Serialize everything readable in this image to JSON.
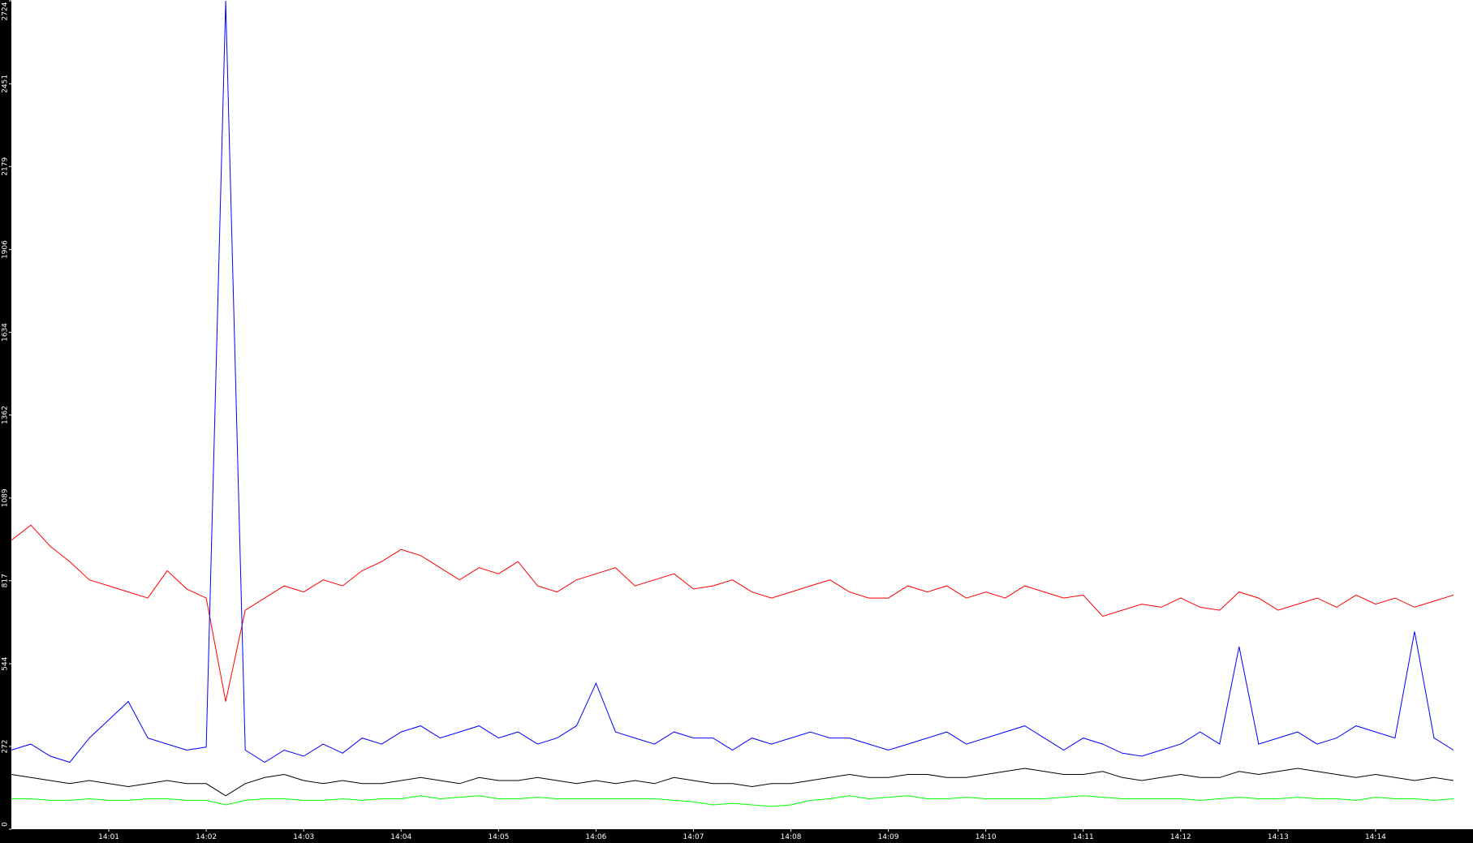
{
  "chart_data": {
    "type": "line",
    "x": [
      0,
      0.2,
      0.4,
      0.6,
      0.8,
      1,
      1.2,
      1.4,
      1.6,
      1.8,
      2,
      2.2,
      2.4,
      2.6,
      2.8,
      3,
      3.2,
      3.4,
      3.6,
      3.8,
      4,
      4.2,
      4.4,
      4.6,
      4.8,
      5,
      5.2,
      5.4,
      5.6,
      5.8,
      6,
      6.2,
      6.4,
      6.6,
      6.8,
      7,
      7.2,
      7.4,
      7.6,
      7.8,
      8,
      8.2,
      8.4,
      8.6,
      8.8,
      9,
      9.2,
      9.4,
      9.6,
      9.8,
      10,
      10.2,
      10.4,
      10.6,
      10.8,
      11,
      11.2,
      11.4,
      11.6,
      11.8,
      12,
      12.2,
      12.4,
      12.6,
      12.8,
      13,
      13.2,
      13.4,
      13.6,
      13.8,
      14,
      14.2,
      14.4,
      14.6,
      14.8
    ],
    "series": [
      {
        "color": "#ff0000",
        "values": [
          950,
          1000,
          930,
          880,
          820,
          800,
          780,
          760,
          850,
          790,
          760,
          420,
          720,
          760,
          800,
          780,
          820,
          800,
          850,
          880,
          920,
          900,
          860,
          820,
          860,
          840,
          880,
          800,
          780,
          820,
          840,
          860,
          800,
          820,
          840,
          790,
          800,
          820,
          780,
          760,
          780,
          800,
          820,
          780,
          760,
          760,
          800,
          780,
          800,
          760,
          780,
          760,
          800,
          780,
          760,
          770,
          700,
          720,
          740,
          730,
          760,
          730,
          720,
          780,
          760,
          720,
          740,
          760,
          730,
          770,
          740,
          760,
          730,
          750,
          770
        ]
      },
      {
        "color": "#0000ff",
        "values": [
          260,
          280,
          240,
          220,
          300,
          360,
          420,
          300,
          280,
          260,
          270,
          2724,
          260,
          220,
          260,
          240,
          280,
          250,
          300,
          280,
          320,
          340,
          300,
          320,
          340,
          300,
          320,
          280,
          300,
          340,
          480,
          320,
          300,
          280,
          320,
          300,
          300,
          260,
          300,
          280,
          300,
          320,
          300,
          300,
          280,
          260,
          280,
          300,
          320,
          280,
          300,
          320,
          340,
          300,
          260,
          300,
          280,
          250,
          240,
          260,
          280,
          320,
          280,
          600,
          280,
          300,
          320,
          280,
          300,
          340,
          320,
          300,
          650,
          300,
          260
        ]
      },
      {
        "color": "#000000",
        "values": [
          180,
          170,
          160,
          150,
          160,
          150,
          140,
          150,
          160,
          150,
          150,
          110,
          150,
          170,
          180,
          160,
          150,
          160,
          150,
          150,
          160,
          170,
          160,
          150,
          170,
          160,
          160,
          170,
          160,
          150,
          160,
          150,
          160,
          150,
          170,
          160,
          150,
          150,
          140,
          150,
          150,
          160,
          170,
          180,
          170,
          170,
          180,
          180,
          170,
          170,
          180,
          190,
          200,
          190,
          180,
          180,
          190,
          170,
          160,
          170,
          180,
          170,
          170,
          190,
          180,
          190,
          200,
          190,
          180,
          170,
          180,
          170,
          160,
          170,
          160
        ]
      },
      {
        "color": "#00ff00",
        "values": [
          100,
          100,
          95,
          95,
          100,
          95,
          95,
          100,
          100,
          95,
          95,
          80,
          95,
          100,
          100,
          95,
          95,
          100,
          95,
          100,
          100,
          110,
          100,
          105,
          110,
          100,
          100,
          105,
          100,
          100,
          100,
          100,
          100,
          100,
          95,
          90,
          80,
          85,
          80,
          75,
          80,
          95,
          100,
          110,
          100,
          105,
          110,
          100,
          100,
          105,
          100,
          100,
          100,
          100,
          105,
          110,
          105,
          100,
          100,
          100,
          100,
          95,
          100,
          105,
          100,
          100,
          105,
          100,
          100,
          95,
          105,
          100,
          100,
          95,
          100
        ]
      }
    ],
    "xlim": [
      0,
      15
    ],
    "xticks": [
      {
        "value": 1,
        "label": "14:01"
      },
      {
        "value": 2,
        "label": "14:02"
      },
      {
        "value": 3,
        "label": "14:03"
      },
      {
        "value": 4,
        "label": "14:04"
      },
      {
        "value": 5,
        "label": "14:05"
      },
      {
        "value": 6,
        "label": "14:06"
      },
      {
        "value": 7,
        "label": "14:07"
      },
      {
        "value": 8,
        "label": "14:08"
      },
      {
        "value": 9,
        "label": "14:09"
      },
      {
        "value": 10,
        "label": "14:10"
      },
      {
        "value": 11,
        "label": "14:11"
      },
      {
        "value": 12,
        "label": "14:12"
      },
      {
        "value": 13,
        "label": "14:13"
      },
      {
        "value": 14,
        "label": "14:14"
      }
    ],
    "ylim": [
      0,
      2724
    ],
    "yticks": [
      0,
      272,
      544,
      817,
      1089,
      1362,
      1634,
      1906,
      2179,
      2451,
      2724
    ]
  }
}
